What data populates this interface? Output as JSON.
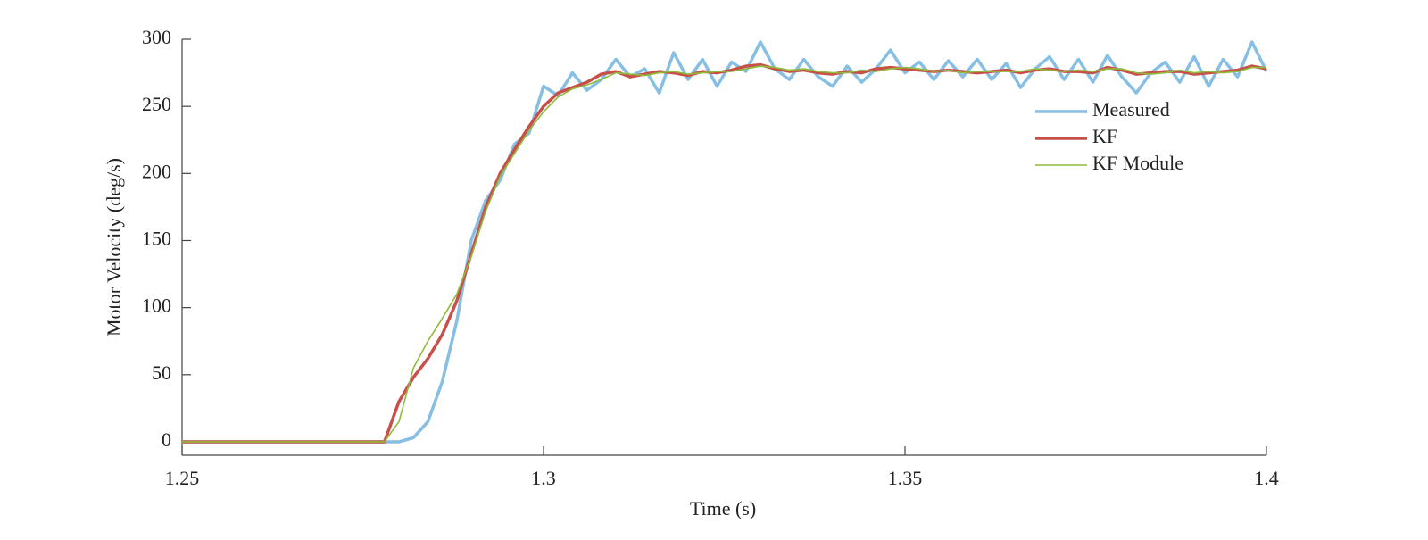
{
  "chart_data": {
    "type": "line",
    "xlabel": "Time (s)",
    "ylabel": "Motor Velocity (deg/s)",
    "x": [
      1.25,
      1.252,
      1.254,
      1.256,
      1.258,
      1.26,
      1.262,
      1.264,
      1.266,
      1.268,
      1.27,
      1.272,
      1.274,
      1.276,
      1.278,
      1.28,
      1.282,
      1.284,
      1.286,
      1.288,
      1.29,
      1.292,
      1.294,
      1.296,
      1.298,
      1.3,
      1.302,
      1.304,
      1.306,
      1.308,
      1.31,
      1.312,
      1.314,
      1.316,
      1.318,
      1.32,
      1.322,
      1.324,
      1.326,
      1.328,
      1.33,
      1.332,
      1.334,
      1.336,
      1.338,
      1.34,
      1.342,
      1.344,
      1.346,
      1.348,
      1.35,
      1.352,
      1.354,
      1.356,
      1.358,
      1.36,
      1.362,
      1.364,
      1.366,
      1.368,
      1.37,
      1.372,
      1.374,
      1.376,
      1.378,
      1.38,
      1.382,
      1.384,
      1.386,
      1.388,
      1.39,
      1.392,
      1.394,
      1.396,
      1.398,
      1.4
    ],
    "series": [
      {
        "name": "Measured",
        "color": "#86bfe3",
        "line_width": 3.5,
        "values": [
          0,
          0,
          0,
          0,
          0,
          0,
          0,
          0,
          0,
          0,
          0,
          0,
          0,
          0,
          0,
          0,
          3,
          15,
          45,
          90,
          150,
          180,
          195,
          222,
          230,
          265,
          258,
          275,
          262,
          270,
          285,
          272,
          278,
          260,
          290,
          270,
          285,
          265,
          283,
          276,
          298,
          278,
          270,
          285,
          272,
          265,
          280,
          268,
          278,
          292,
          275,
          283,
          270,
          284,
          272,
          285,
          270,
          282,
          264,
          278,
          287,
          270,
          285,
          268,
          288,
          272,
          260,
          275,
          283,
          268,
          287,
          265,
          285,
          272,
          298,
          276
        ]
      },
      {
        "name": "KF",
        "color": "#c8504b",
        "line_width": 3.5,
        "values": [
          0,
          0,
          0,
          0,
          0,
          0,
          0,
          0,
          0,
          0,
          0,
          0,
          0,
          0,
          0,
          30,
          48,
          62,
          80,
          105,
          140,
          175,
          200,
          218,
          235,
          250,
          260,
          264,
          268,
          274,
          276,
          272,
          274,
          276,
          275,
          273,
          276,
          275,
          277,
          280,
          281,
          278,
          276,
          277,
          275,
          274,
          276,
          275,
          278,
          279,
          278,
          277,
          276,
          277,
          276,
          275,
          276,
          277,
          275,
          277,
          278,
          276,
          276,
          275,
          279,
          277,
          274,
          275,
          276,
          276,
          274,
          275,
          276,
          277,
          280,
          278
        ]
      },
      {
        "name": "KF Module",
        "color": "#8fbb3a",
        "line_width": 1.6,
        "values": [
          0,
          0,
          0,
          0,
          0,
          0,
          0,
          0,
          0,
          0,
          0,
          0,
          0,
          0,
          0,
          15,
          55,
          75,
          92,
          110,
          138,
          172,
          198,
          215,
          232,
          246,
          257,
          263,
          266,
          270,
          275,
          274,
          273,
          275,
          276,
          274,
          275,
          276,
          276,
          278,
          280,
          279,
          277,
          278,
          276,
          275,
          275,
          277,
          276,
          278,
          279,
          278,
          276,
          277,
          275,
          276,
          276,
          276,
          276,
          278,
          277,
          276,
          277,
          276,
          278,
          278,
          275,
          274,
          275,
          277,
          275,
          276,
          275,
          276,
          279,
          279
        ]
      }
    ],
    "xlim": [
      1.25,
      1.4
    ],
    "xticks": [
      1.25,
      1.3,
      1.35,
      1.4
    ],
    "ylim": [
      -10,
      300
    ],
    "yticks": [
      0,
      50,
      100,
      150,
      200,
      250,
      300
    ],
    "grid": false,
    "legend": "upper right"
  }
}
